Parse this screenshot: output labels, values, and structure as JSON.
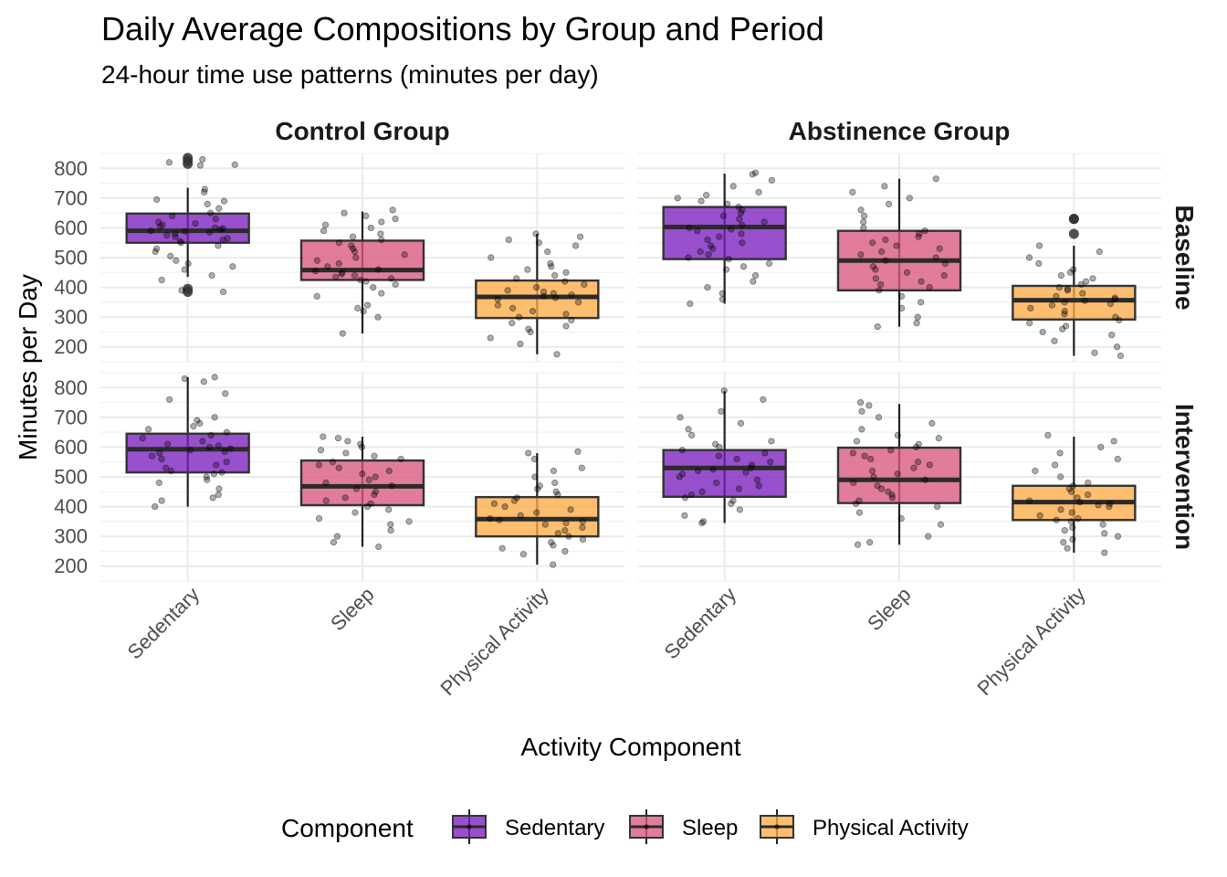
{
  "title": "Daily Average Compositions by Group and Period",
  "subtitle": "24-hour time use patterns (minutes per day)",
  "chart_data": {
    "type": "boxplot",
    "title": "Daily Average Compositions by Group and Period",
    "subtitle": "24-hour time use patterns (minutes per day)",
    "xlabel": "Activity Component",
    "ylabel": "Minutes per Day",
    "ylim": [
      150,
      850
    ],
    "yticks": [
      200,
      300,
      400,
      500,
      600,
      700,
      800
    ],
    "categories": [
      "Sedentary",
      "Sleep",
      "Physical Activity"
    ],
    "col_facets": [
      "Control Group",
      "Abstinence Group"
    ],
    "row_facets": [
      "Baseline",
      "Intervention"
    ],
    "grid": true,
    "legend": {
      "title": "Component",
      "position": "bottom",
      "items": [
        {
          "label": "Sedentary",
          "color": "#7b1fbe"
        },
        {
          "label": "Sleep",
          "color": "#d9587f"
        },
        {
          "label": "Physical Activity",
          "color": "#fdac48"
        }
      ]
    },
    "panels": [
      {
        "group": "Control Group",
        "period": "Baseline",
        "boxes": [
          {
            "category": "Sedentary",
            "whisker_low": 435,
            "q1": 550,
            "median": 590,
            "q3": 648,
            "whisker_high": 735,
            "outliers": [
              835,
              825,
              815,
              395,
              385
            ],
            "points": [
              830,
              820,
              810,
              812,
              730,
              720,
              695,
              690,
              680,
              665,
              650,
              640,
              630,
              620,
              615,
              610,
              605,
              600,
              598,
              595,
              590,
              588,
              585,
              580,
              575,
              570,
              565,
              560,
              555,
              550,
              540,
              530,
              520,
              505,
              490,
              480,
              470,
              460,
              440,
              425,
              390,
              385
            ]
          },
          {
            "category": "Sleep",
            "whisker_low": 245,
            "q1": 425,
            "median": 458,
            "q3": 557,
            "whisker_high": 655,
            "outliers": [],
            "points": [
              660,
              650,
              640,
              630,
              620,
              610,
              600,
              590,
              580,
              570,
              560,
              550,
              540,
              530,
              520,
              510,
              500,
              490,
              480,
              470,
              460,
              455,
              450,
              445,
              440,
              435,
              430,
              425,
              420,
              410,
              400,
              380,
              370,
              340,
              330,
              320,
              300,
              245
            ]
          },
          {
            "category": "Physical Activity",
            "whisker_low": 175,
            "q1": 297,
            "median": 368,
            "q3": 423,
            "whisker_high": 580,
            "outliers": [],
            "points": [
              580,
              570,
              560,
              550,
              540,
              520,
              500,
              480,
              470,
              460,
              450,
              440,
              430,
              420,
              410,
              400,
              390,
              385,
              380,
              375,
              370,
              365,
              360,
              350,
              340,
              330,
              320,
              310,
              300,
              290,
              280,
              270,
              260,
              250,
              230,
              210,
              175
            ]
          }
        ]
      },
      {
        "group": "Abstinence Group",
        "period": "Baseline",
        "boxes": [
          {
            "category": "Sedentary",
            "whisker_low": 345,
            "q1": 495,
            "median": 603,
            "q3": 670,
            "whisker_high": 782,
            "outliers": [],
            "points": [
              785,
              780,
              760,
              740,
              720,
              710,
              700,
              690,
              680,
              670,
              660,
              650,
              640,
              630,
              620,
              610,
              600,
              595,
              590,
              580,
              570,
              560,
              550,
              540,
              530,
              520,
              510,
              500,
              495,
              480,
              470,
              460,
              440,
              420,
              400,
              380,
              360,
              345
            ]
          },
          {
            "category": "Sleep",
            "whisker_low": 268,
            "q1": 390,
            "median": 490,
            "q3": 590,
            "whisker_high": 765,
            "outliers": [],
            "points": [
              765,
              740,
              720,
              700,
              680,
              660,
              640,
              620,
              600,
              590,
              580,
              570,
              560,
              550,
              540,
              530,
              520,
              510,
              500,
              490,
              480,
              470,
              460,
              450,
              440,
              430,
              420,
              410,
              400,
              390,
              370,
              350,
              330,
              300,
              280,
              268
            ]
          },
          {
            "category": "Physical Activity",
            "whisker_low": 170,
            "q1": 292,
            "median": 357,
            "q3": 405,
            "whisker_high": 540,
            "outliers": [
              630,
              630,
              580
            ],
            "points": [
              540,
              520,
              500,
              480,
              460,
              450,
              440,
              430,
              420,
              410,
              400,
              395,
              390,
              380,
              370,
              365,
              360,
              355,
              350,
              345,
              340,
              330,
              320,
              310,
              300,
              290,
              280,
              270,
              260,
              250,
              240,
              220,
              200,
              180,
              170
            ]
          }
        ]
      },
      {
        "group": "Control Group",
        "period": "Intervention",
        "boxes": [
          {
            "category": "Sedentary",
            "whisker_low": 400,
            "q1": 515,
            "median": 593,
            "q3": 645,
            "whisker_high": 835,
            "outliers": [],
            "points": [
              835,
              830,
              820,
              780,
              760,
              700,
              690,
              680,
              670,
              660,
              650,
              640,
              630,
              620,
              610,
              605,
              600,
              595,
              590,
              585,
              580,
              570,
              560,
              550,
              540,
              530,
              520,
              515,
              510,
              500,
              490,
              480,
              460,
              440,
              430,
              420,
              400
            ]
          },
          {
            "category": "Sleep",
            "whisker_low": 265,
            "q1": 405,
            "median": 468,
            "q3": 555,
            "whisker_high": 635,
            "outliers": [],
            "points": [
              635,
              630,
              620,
              610,
              600,
              590,
              580,
              570,
              560,
              550,
              540,
              530,
              520,
              510,
              500,
              490,
              480,
              470,
              460,
              450,
              440,
              430,
              420,
              410,
              400,
              390,
              380,
              360,
              350,
              340,
              320,
              300,
              280,
              265
            ]
          },
          {
            "category": "Physical Activity",
            "whisker_low": 205,
            "q1": 300,
            "median": 358,
            "q3": 432,
            "whisker_high": 580,
            "outliers": [],
            "points": [
              585,
              580,
              560,
              530,
              520,
              500,
              480,
              470,
              460,
              450,
              440,
              430,
              420,
              410,
              400,
              390,
              380,
              370,
              360,
              355,
              350,
              345,
              340,
              330,
              320,
              310,
              300,
              290,
              280,
              270,
              260,
              250,
              240,
              205
            ]
          }
        ]
      },
      {
        "group": "Abstinence Group",
        "period": "Intervention",
        "boxes": [
          {
            "category": "Sedentary",
            "whisker_low": 345,
            "q1": 433,
            "median": 530,
            "q3": 590,
            "whisker_high": 788,
            "outliers": [],
            "points": [
              790,
              760,
              720,
              700,
              680,
              660,
              640,
              620,
              610,
              600,
              590,
              580,
              570,
              560,
              550,
              540,
              530,
              525,
              520,
              515,
              510,
              500,
              490,
              480,
              470,
              460,
              450,
              440,
              430,
              420,
              410,
              390,
              370,
              350,
              345
            ]
          },
          {
            "category": "Sleep",
            "whisker_low": 272,
            "q1": 412,
            "median": 490,
            "q3": 598,
            "whisker_high": 745,
            "outliers": [],
            "points": [
              750,
              740,
              720,
              700,
              680,
              660,
              640,
              630,
              620,
              610,
              600,
              590,
              580,
              570,
              560,
              550,
              540,
              530,
              520,
              510,
              500,
              490,
              480,
              470,
              460,
              450,
              440,
              430,
              420,
              410,
              400,
              380,
              360,
              340,
              300,
              280,
              272
            ]
          },
          {
            "category": "Physical Activity",
            "whisker_low": 245,
            "q1": 355,
            "median": 415,
            "q3": 470,
            "whisker_high": 635,
            "outliers": [],
            "points": [
              640,
              620,
              600,
              580,
              560,
              540,
              520,
              500,
              480,
              470,
              460,
              450,
              440,
              430,
              420,
              415,
              410,
              405,
              400,
              390,
              380,
              370,
              360,
              355,
              350,
              340,
              330,
              320,
              310,
              300,
              290,
              280,
              260,
              245
            ]
          }
        ]
      }
    ]
  }
}
